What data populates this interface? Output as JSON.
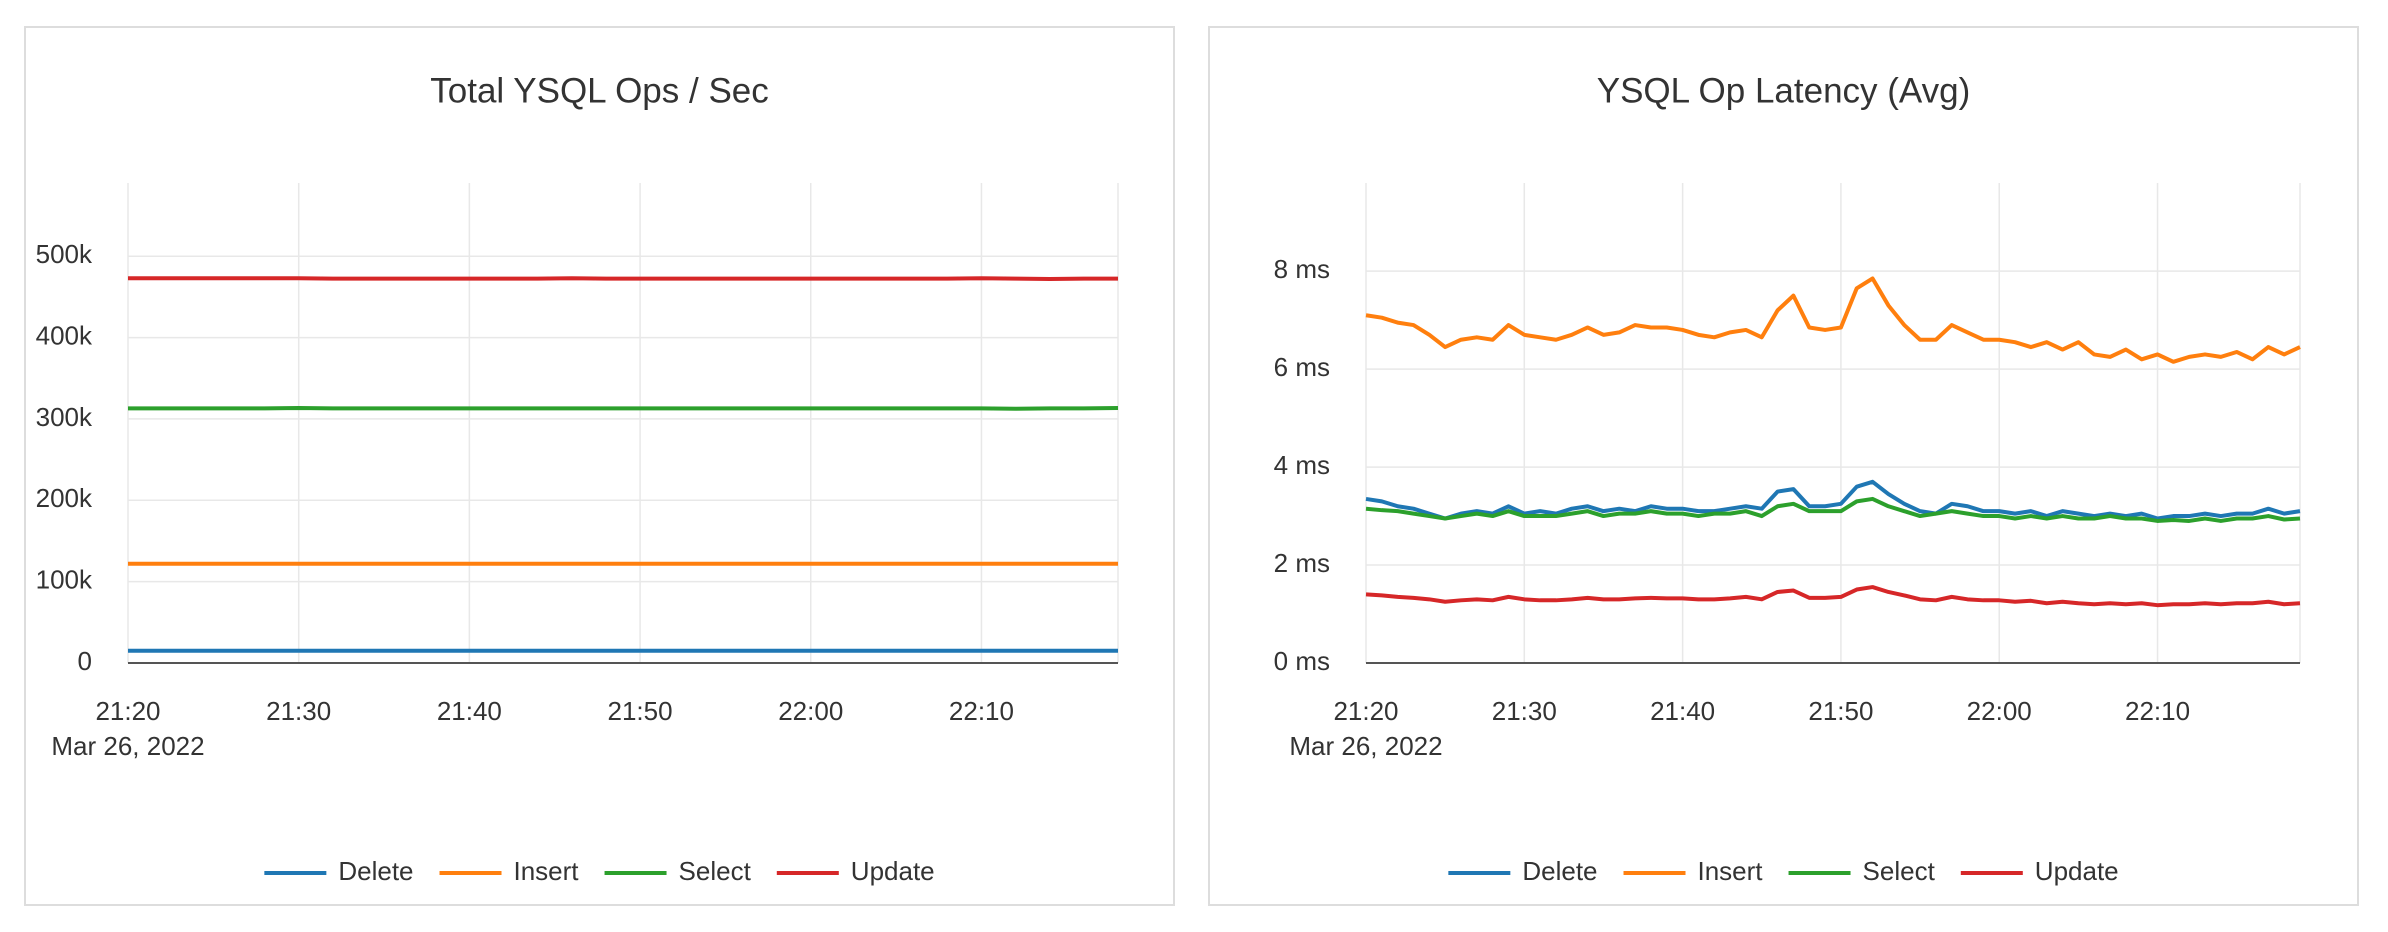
{
  "chart_data": [
    {
      "type": "line",
      "title": "Total YSQL Ops / Sec",
      "x_date_label": "Mar 26, 2022",
      "x": [
        "21:20",
        "21:22",
        "21:24",
        "21:26",
        "21:28",
        "21:30",
        "21:32",
        "21:34",
        "21:36",
        "21:38",
        "21:40",
        "21:42",
        "21:44",
        "21:46",
        "21:48",
        "21:50",
        "21:52",
        "21:54",
        "21:56",
        "21:58",
        "22:00",
        "22:02",
        "22:04",
        "22:06",
        "22:08",
        "22:10",
        "22:12",
        "22:14",
        "22:16",
        "22:18"
      ],
      "xticks": [
        "21:20",
        "21:30",
        "21:40",
        "21:50",
        "22:00",
        "22:10"
      ],
      "ylim": [
        0,
        590000
      ],
      "yticks": [
        0,
        {
          "value": 100000,
          "label": "100k"
        },
        {
          "value": 200000,
          "label": "200k"
        },
        {
          "value": 300000,
          "label": "300k"
        },
        {
          "value": 400000,
          "label": "400k"
        },
        {
          "value": 500000,
          "label": "500k"
        }
      ],
      "grid": true,
      "series": [
        {
          "name": "Delete",
          "color": "#1f77b4",
          "values": [
            15000,
            15000,
            15000,
            15000,
            15000,
            15000,
            15000,
            15000,
            15000,
            15000,
            15000,
            15000,
            15000,
            15000,
            15000,
            15000,
            15000,
            15000,
            15000,
            15000,
            15000,
            15000,
            15000,
            15000,
            15000,
            15000,
            15000,
            15000,
            15000,
            15000
          ]
        },
        {
          "name": "Insert",
          "color": "#ff7f0e",
          "values": [
            122000,
            122000,
            122000,
            122000,
            122000,
            122000,
            122000,
            122000,
            122000,
            122000,
            122000,
            122000,
            122000,
            122000,
            122000,
            122000,
            122000,
            122000,
            122000,
            122000,
            122000,
            122000,
            122000,
            122000,
            122000,
            122000,
            122000,
            122000,
            122000,
            122000
          ]
        },
        {
          "name": "Select",
          "color": "#2ca02c",
          "values": [
            313000,
            313000,
            313000,
            313000,
            313000,
            313500,
            313000,
            313000,
            313000,
            313000,
            313000,
            313000,
            313000,
            313000,
            313000,
            313000,
            313000,
            313000,
            313000,
            313000,
            313000,
            313000,
            313000,
            313000,
            313000,
            313000,
            312500,
            313000,
            313000,
            313500
          ]
        },
        {
          "name": "Update",
          "color": "#d62728",
          "values": [
            473000,
            473000,
            473000,
            473000,
            473000,
            473000,
            472500,
            472500,
            472500,
            472500,
            472500,
            472500,
            472500,
            473000,
            472500,
            472500,
            472500,
            472500,
            472500,
            472500,
            472500,
            472500,
            472500,
            472500,
            472500,
            473000,
            472500,
            472000,
            472500,
            472500
          ]
        }
      ]
    },
    {
      "type": "line",
      "title": "YSQL Op Latency (Avg)",
      "x_date_label": "Mar 26, 2022",
      "x": [
        "21:20",
        "21:21",
        "21:22",
        "21:23",
        "21:24",
        "21:25",
        "21:26",
        "21:27",
        "21:28",
        "21:29",
        "21:30",
        "21:31",
        "21:32",
        "21:33",
        "21:34",
        "21:35",
        "21:36",
        "21:37",
        "21:38",
        "21:39",
        "21:40",
        "21:41",
        "21:42",
        "21:43",
        "21:44",
        "21:45",
        "21:46",
        "21:47",
        "21:48",
        "21:49",
        "21:50",
        "21:51",
        "21:52",
        "21:53",
        "21:54",
        "21:55",
        "21:56",
        "21:57",
        "21:58",
        "21:59",
        "22:00",
        "22:01",
        "22:02",
        "22:03",
        "22:04",
        "22:05",
        "22:06",
        "22:07",
        "22:08",
        "22:09",
        "22:10",
        "22:11",
        "22:12",
        "22:13",
        "22:14",
        "22:15",
        "22:16",
        "22:17",
        "22:18",
        "22:19"
      ],
      "xticks": [
        "21:20",
        "21:30",
        "21:40",
        "21:50",
        "22:00",
        "22:10"
      ],
      "ylim": [
        0,
        9.8
      ],
      "yticks": [
        {
          "value": 0,
          "label": "0 ms"
        },
        {
          "value": 2,
          "label": "2 ms"
        },
        {
          "value": 4,
          "label": "4 ms"
        },
        {
          "value": 6,
          "label": "6 ms"
        },
        {
          "value": 8,
          "label": "8 ms"
        }
      ],
      "grid": true,
      "series": [
        {
          "name": "Delete",
          "color": "#1f77b4",
          "values": [
            3.35,
            3.3,
            3.2,
            3.15,
            3.05,
            2.95,
            3.05,
            3.1,
            3.05,
            3.2,
            3.05,
            3.1,
            3.05,
            3.15,
            3.2,
            3.1,
            3.15,
            3.1,
            3.2,
            3.15,
            3.15,
            3.1,
            3.1,
            3.15,
            3.2,
            3.15,
            3.5,
            3.55,
            3.2,
            3.2,
            3.25,
            3.6,
            3.7,
            3.45,
            3.25,
            3.1,
            3.05,
            3.25,
            3.2,
            3.1,
            3.1,
            3.05,
            3.1,
            3.0,
            3.1,
            3.05,
            3.0,
            3.05,
            3.0,
            3.05,
            2.95,
            3.0,
            3.0,
            3.05,
            3.0,
            3.05,
            3.05,
            3.15,
            3.05,
            3.1
          ]
        },
        {
          "name": "Insert",
          "color": "#ff7f0e",
          "values": [
            7.1,
            7.05,
            6.95,
            6.9,
            6.7,
            6.45,
            6.6,
            6.65,
            6.6,
            6.9,
            6.7,
            6.65,
            6.6,
            6.7,
            6.85,
            6.7,
            6.75,
            6.9,
            6.85,
            6.85,
            6.8,
            6.7,
            6.65,
            6.75,
            6.8,
            6.65,
            7.2,
            7.5,
            6.85,
            6.8,
            6.85,
            7.65,
            7.85,
            7.3,
            6.9,
            6.6,
            6.6,
            6.9,
            6.75,
            6.6,
            6.6,
            6.55,
            6.45,
            6.55,
            6.4,
            6.55,
            6.3,
            6.25,
            6.4,
            6.2,
            6.3,
            6.15,
            6.25,
            6.3,
            6.25,
            6.35,
            6.2,
            6.45,
            6.3,
            6.45
          ]
        },
        {
          "name": "Select",
          "color": "#2ca02c",
          "values": [
            3.15,
            3.12,
            3.1,
            3.05,
            3.0,
            2.95,
            3.0,
            3.05,
            3.0,
            3.1,
            3.0,
            3.0,
            3.0,
            3.05,
            3.1,
            3.0,
            3.05,
            3.05,
            3.1,
            3.05,
            3.05,
            3.0,
            3.05,
            3.05,
            3.1,
            3.0,
            3.2,
            3.25,
            3.1,
            3.1,
            3.1,
            3.3,
            3.35,
            3.2,
            3.1,
            3.0,
            3.05,
            3.1,
            3.05,
            3.0,
            3.0,
            2.95,
            3.0,
            2.95,
            3.0,
            2.95,
            2.95,
            3.0,
            2.95,
            2.95,
            2.9,
            2.92,
            2.9,
            2.95,
            2.9,
            2.95,
            2.95,
            3.0,
            2.93,
            2.95
          ]
        },
        {
          "name": "Update",
          "color": "#d62728",
          "values": [
            1.4,
            1.38,
            1.35,
            1.33,
            1.3,
            1.25,
            1.28,
            1.3,
            1.28,
            1.35,
            1.3,
            1.28,
            1.28,
            1.3,
            1.33,
            1.3,
            1.3,
            1.32,
            1.33,
            1.32,
            1.32,
            1.3,
            1.3,
            1.32,
            1.35,
            1.3,
            1.45,
            1.48,
            1.33,
            1.33,
            1.35,
            1.5,
            1.55,
            1.45,
            1.38,
            1.3,
            1.28,
            1.35,
            1.3,
            1.28,
            1.28,
            1.25,
            1.27,
            1.22,
            1.25,
            1.22,
            1.2,
            1.22,
            1.2,
            1.22,
            1.18,
            1.2,
            1.2,
            1.22,
            1.2,
            1.22,
            1.22,
            1.25,
            1.2,
            1.22
          ]
        }
      ]
    }
  ]
}
